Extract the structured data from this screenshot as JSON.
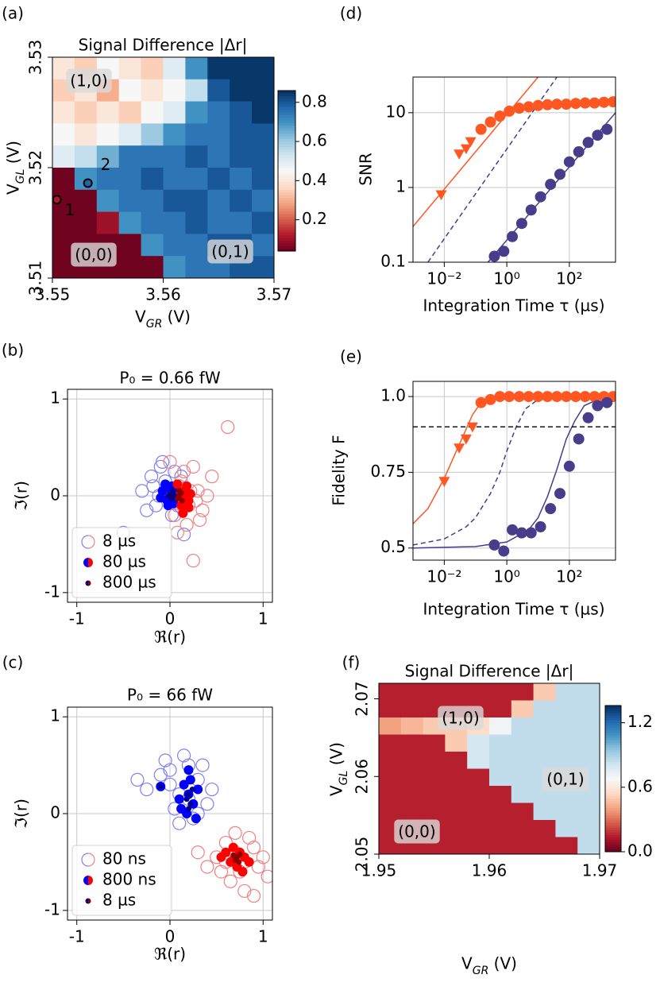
{
  "chart_data": [
    {
      "type": "heatmap",
      "panel_label": "(a)",
      "title": "Signal Difference |Δr|",
      "xlabel": "V_{GR} (V)",
      "ylabel": "V_{GL} (V)",
      "xlim": [
        3.55,
        3.57
      ],
      "ylim": [
        3.51,
        3.53
      ],
      "xticks": [
        3.55,
        3.56,
        3.57
      ],
      "yticks": [
        3.51,
        3.52,
        3.53
      ],
      "colormap": "RdBu",
      "clim": [
        0.04,
        0.86
      ],
      "cbar_ticks": [
        0.2,
        0.4,
        0.6,
        0.8
      ],
      "z": [
        [
          0.4,
          0.35,
          0.45,
          0.4,
          0.35,
          0.5,
          0.7,
          0.85,
          0.85,
          0.85
        ],
        [
          0.35,
          0.4,
          0.3,
          0.45,
          0.4,
          0.45,
          0.55,
          0.8,
          0.85,
          0.85
        ],
        [
          0.4,
          0.35,
          0.4,
          0.35,
          0.45,
          0.5,
          0.7,
          0.75,
          0.8,
          0.85
        ],
        [
          0.45,
          0.4,
          0.45,
          0.5,
          0.6,
          0.7,
          0.75,
          0.75,
          0.8,
          0.8
        ],
        [
          0.5,
          0.55,
          0.65,
          0.75,
          0.75,
          0.75,
          0.8,
          0.75,
          0.8,
          0.8
        ],
        [
          0.05,
          0.7,
          0.75,
          0.75,
          0.8,
          0.75,
          0.75,
          0.8,
          0.75,
          0.8
        ],
        [
          0.05,
          0.05,
          0.7,
          0.75,
          0.75,
          0.8,
          0.8,
          0.75,
          0.8,
          0.75
        ],
        [
          0.05,
          0.05,
          0.1,
          0.7,
          0.75,
          0.75,
          0.8,
          0.75,
          0.75,
          0.8
        ],
        [
          0.05,
          0.05,
          0.05,
          0.05,
          0.7,
          0.75,
          0.75,
          0.8,
          0.8,
          0.75
        ],
        [
          0.05,
          0.05,
          0.05,
          0.05,
          0.05,
          0.7,
          0.75,
          0.75,
          0.8,
          0.8
        ]
      ],
      "annotations": [
        "(1,0)",
        "(0,0)",
        "(0,1)"
      ],
      "points": [
        {
          "label": "1",
          "x": 3.5504,
          "y": 3.5171,
          "color": "#b2182b"
        },
        {
          "label": "2",
          "x": 3.5532,
          "y": 3.5186,
          "color": "#2166ac"
        }
      ]
    },
    {
      "type": "scatter",
      "panel_label": "(b)",
      "title": "P₀ = 0.66 fW",
      "xlabel": "ℜ(r)",
      "ylabel": "ℑ(r)",
      "xlim": [
        -1.1,
        1.1
      ],
      "ylim": [
        -1.1,
        1.1
      ],
      "xticks": [
        -1,
        0,
        1
      ],
      "yticks": [
        -1,
        0,
        1
      ],
      "grid": true,
      "legend": {
        "loc": "lower left",
        "labels": [
          "8 µs",
          "80 µs",
          "800 µs"
        ]
      },
      "series": [
        {
          "group": 0,
          "marker": "open-circle",
          "color": "#8080f0",
          "x": [
            -0.3,
            -0.2,
            -0.15,
            -0.1,
            -0.05,
            0,
            0.05,
            0.1,
            -0.25,
            -0.12,
            0.02,
            -0.08,
            0.08,
            -0.18,
            -0.02,
            0.12,
            -0.5,
            0.15
          ],
          "y": [
            0.05,
            0.2,
            -0.1,
            0.3,
            0.15,
            -0.05,
            0.25,
            0.1,
            -0.15,
            0.0,
            -0.2,
            0.35,
            -0.1,
            0.1,
            0.05,
            0.2,
            -0.38,
            -0.4
          ]
        },
        {
          "group": 0,
          "marker": "open-circle",
          "color": "#f08080",
          "x": [
            0.1,
            0.2,
            0.3,
            0.15,
            0.05,
            0.25,
            0.35,
            0.0,
            0.4,
            0.18,
            0.12,
            0.28,
            0.62,
            0.25,
            0.08,
            0.45,
            0.22,
            0.32
          ],
          "y": [
            0.1,
            -0.1,
            0.05,
            0.25,
            -0.2,
            0.3,
            -0.15,
            0.35,
            0.0,
            -0.3,
            0.15,
            -0.05,
            0.71,
            -0.67,
            -0.38,
            0.2,
            0.05,
            -0.25
          ]
        },
        {
          "group": 1,
          "marker": "mid",
          "color": "#0000ff",
          "x": [
            -0.08,
            -0.03,
            0.02,
            0.05,
            -0.1,
            0.0,
            0.04,
            -0.05,
            0.08,
            -0.02
          ],
          "y": [
            0.05,
            -0.05,
            0.1,
            0.0,
            -0.02,
            0.07,
            -0.08,
            0.12,
            0.05,
            -0.1
          ]
        },
        {
          "group": 1,
          "marker": "mid",
          "color": "#ff0000",
          "x": [
            0.1,
            0.15,
            0.2,
            0.12,
            0.18,
            0.08,
            0.22,
            0.14,
            0.16,
            0.2
          ],
          "y": [
            0.0,
            0.05,
            -0.05,
            -0.1,
            0.1,
            0.12,
            0.02,
            -0.18,
            -0.03,
            -0.12
          ]
        },
        {
          "group": 2,
          "marker": "dot",
          "color": "#00008b",
          "x": [
            0.0,
            0.03,
            0.05,
            -0.02,
            0.02
          ],
          "y": [
            0.02,
            0.05,
            0.0,
            0.0,
            -0.03
          ]
        },
        {
          "group": 2,
          "marker": "dot",
          "color": "#8b0000",
          "x": [
            0.1,
            0.12,
            0.08,
            0.13,
            0.1
          ],
          "y": [
            0.0,
            0.03,
            -0.03,
            -0.05,
            0.05
          ]
        }
      ]
    },
    {
      "type": "scatter",
      "panel_label": "(c)",
      "title": "P₀ = 66 fW",
      "xlabel": "ℜ(r)",
      "ylabel": "ℑ(r)",
      "xlim": [
        -1.1,
        1.1
      ],
      "ylim": [
        -1.1,
        1.1
      ],
      "xticks": [
        -1,
        0,
        1
      ],
      "yticks": [
        -1,
        0,
        1
      ],
      "grid": true,
      "legend": {
        "loc": "lower left",
        "labels": [
          "80 ns",
          "800 ns",
          "8 µs"
        ]
      },
      "series": [
        {
          "group": 0,
          "marker": "open-circle",
          "color": "#8080f0",
          "x": [
            0.2,
            0.0,
            -0.1,
            0.1,
            0.3,
            0.4,
            0.15,
            -0.25,
            -0.35,
            0.05,
            0.25,
            0.35,
            0.45,
            0.1,
            0.2,
            -0.05,
            0.3,
            0.0
          ],
          "y": [
            0.5,
            0.3,
            0.4,
            0.2,
            0.35,
            0.1,
            0.6,
            0.25,
            0.35,
            0.05,
            -0.05,
            0.5,
            0.25,
            -0.1,
            0.15,
            0.55,
            0.0,
            0.45
          ]
        },
        {
          "group": 0,
          "marker": "open-circle",
          "color": "#f08080",
          "x": [
            0.7,
            0.6,
            0.8,
            0.9,
            0.5,
            0.75,
            0.95,
            0.65,
            0.85,
            1.0,
            0.55,
            0.7,
            0.4,
            0.8,
            1.05,
            0.6,
            0.3,
            0.9
          ],
          "y": [
            -0.4,
            -0.3,
            -0.5,
            -0.35,
            -0.45,
            -0.6,
            -0.55,
            -0.7,
            -0.25,
            -0.45,
            -0.6,
            -0.2,
            -0.55,
            -0.8,
            -0.65,
            -0.5,
            -0.4,
            -0.85
          ]
        },
        {
          "group": 1,
          "marker": "mid",
          "color": "#0000ff",
          "x": [
            0.15,
            0.2,
            0.25,
            0.1,
            0.3,
            0.18,
            0.22,
            0.12,
            0.28,
            0.2,
            -0.1
          ],
          "y": [
            0.3,
            0.2,
            0.1,
            0.15,
            0.25,
            0.0,
            0.35,
            0.05,
            -0.05,
            0.45,
            0.28
          ]
        },
        {
          "group": 1,
          "marker": "mid",
          "color": "#ff0000",
          "x": [
            0.7,
            0.75,
            0.65,
            0.8,
            0.72,
            0.6,
            0.85,
            0.68,
            0.78,
            0.55
          ],
          "y": [
            -0.45,
            -0.4,
            -0.5,
            -0.45,
            -0.55,
            -0.4,
            -0.5,
            -0.35,
            -0.6,
            -0.45
          ]
        },
        {
          "group": 2,
          "marker": "dot",
          "color": "#00008b",
          "x": [
            0.2,
            0.22,
            0.18,
            0.24,
            0.2,
            -0.1
          ],
          "y": [
            0.2,
            0.1,
            0.15,
            0.25,
            0.05,
            0.28
          ]
        },
        {
          "group": 2,
          "marker": "dot",
          "color": "#8b0000",
          "x": [
            0.72,
            0.75,
            0.7,
            0.74,
            0.68
          ],
          "y": [
            -0.45,
            -0.42,
            -0.48,
            -0.5,
            -0.43
          ]
        }
      ]
    },
    {
      "type": "scatter",
      "panel_label": "(d)",
      "xlabel": "Integration Time τ (µs)",
      "ylabel": "SNR",
      "xscale": "log",
      "yscale": "log",
      "xlim": [
        0.001,
        3000
      ],
      "ylim": [
        0.1,
        30
      ],
      "grid": true,
      "xticks": [
        {
          "value": 0.01,
          "label": "10⁻²"
        },
        {
          "value": 1,
          "label": "10⁰"
        },
        {
          "value": 100,
          "label": "10²"
        }
      ],
      "yticks": [
        0.1,
        1,
        10
      ],
      "lines": [
        {
          "color": "#ff5722",
          "style": "solid",
          "x": [
            0.001,
            10
          ],
          "y": [
            0.3,
            30
          ]
        },
        {
          "color": "#483d8b",
          "style": "dashed",
          "x": [
            0.003,
            40
          ],
          "y": [
            0.1,
            30
          ]
        },
        {
          "color": "#483d8b",
          "style": "solid",
          "x": [
            0.25,
            3000
          ],
          "y": [
            0.1,
            10
          ]
        }
      ],
      "series": [
        {
          "marker": "triangle",
          "color": "#ff5722",
          "x": [
            0.008,
            0.03,
            0.05,
            0.07
          ],
          "y": [
            0.8,
            2.8,
            3.3,
            4.1
          ]
        },
        {
          "marker": "circle",
          "color": "#ff5722",
          "x": [
            0.15,
            0.3,
            0.6,
            1.2,
            2.5,
            5,
            10,
            20,
            40,
            80,
            160,
            320,
            640,
            1280,
            2500
          ],
          "y": [
            6,
            7.5,
            9,
            10.5,
            11.5,
            12,
            12.5,
            12.8,
            13,
            13,
            13.3,
            13.5,
            13.5,
            13.8,
            14
          ]
        },
        {
          "marker": "circle",
          "color": "#483d8b",
          "x": [
            0.4,
            0.8,
            1.5,
            3,
            6,
            12,
            25,
            50,
            100,
            200,
            400,
            800,
            1600
          ],
          "y": [
            0.12,
            0.14,
            0.22,
            0.33,
            0.5,
            0.75,
            1.1,
            1.5,
            2.2,
            3,
            4,
            5,
            6
          ]
        }
      ]
    },
    {
      "type": "scatter",
      "panel_label": "(e)",
      "xlabel": "Integration Time τ (µs)",
      "ylabel": "Fidelity F",
      "xscale": "log",
      "xlim": [
        0.001,
        3000
      ],
      "ylim": [
        0.46,
        1.05
      ],
      "grid": true,
      "xticks": [
        {
          "value": 0.01,
          "label": "10⁻²"
        },
        {
          "value": 1,
          "label": "10⁰"
        },
        {
          "value": 100,
          "label": "10²"
        }
      ],
      "yticks": [
        0.5,
        0.75,
        {
          "value": 1,
          "label": "1.0"
        }
      ],
      "hlines": [
        {
          "y": 0.9,
          "color": "#000000",
          "style": "dashed"
        }
      ],
      "lines": [
        {
          "color": "#ff5722",
          "style": "solid",
          "x": [
            0.001,
            0.003,
            0.01,
            0.02,
            0.04,
            0.08,
            0.15,
            0.3,
            1,
            3000
          ],
          "y": [
            0.58,
            0.63,
            0.73,
            0.8,
            0.87,
            0.94,
            0.98,
            1.0,
            1.0,
            1.0
          ]
        },
        {
          "color": "#483d8b",
          "style": "dashed",
          "x": [
            0.001,
            0.01,
            0.05,
            0.1,
            0.3,
            0.6,
            1,
            2,
            4,
            10,
            3000
          ],
          "y": [
            0.51,
            0.53,
            0.57,
            0.6,
            0.68,
            0.75,
            0.82,
            0.9,
            0.96,
            0.99,
            1.0
          ]
        },
        {
          "color": "#483d8b",
          "style": "solid",
          "x": [
            0.001,
            0.1,
            1,
            5,
            10,
            20,
            40,
            80,
            150,
            300,
            800,
            3000
          ],
          "y": [
            0.5,
            0.505,
            0.52,
            0.56,
            0.6,
            0.67,
            0.76,
            0.86,
            0.92,
            0.97,
            0.99,
            1.0
          ]
        }
      ],
      "series": [
        {
          "marker": "triangle",
          "color": "#ff5722",
          "x": [
            0.01,
            0.03,
            0.05,
            0.08
          ],
          "y": [
            0.72,
            0.83,
            0.86,
            0.9
          ]
        },
        {
          "marker": "circle",
          "color": "#ff5722",
          "x": [
            0.15,
            0.3,
            0.6,
            1.2,
            2.5,
            5,
            10,
            20,
            40,
            80,
            160,
            320,
            640,
            1280,
            2500
          ],
          "y": [
            0.98,
            0.99,
            1,
            1,
            1,
            1,
            1,
            1,
            1,
            1,
            1,
            1,
            1,
            1,
            1
          ]
        },
        {
          "marker": "circle",
          "color": "#483d8b",
          "x": [
            0.4,
            0.8,
            1.5,
            3,
            6,
            12,
            25,
            50,
            100,
            200,
            400,
            800,
            1600
          ],
          "y": [
            0.51,
            0.49,
            0.56,
            0.55,
            0.55,
            0.57,
            0.63,
            0.68,
            0.77,
            0.86,
            0.93,
            0.97,
            0.98
          ]
        }
      ]
    },
    {
      "type": "heatmap",
      "panel_label": "(f)",
      "title": "Signal Difference |Δr|",
      "xlabel": "V_{GR} (V)",
      "ylabel": "V_{GL} (V)",
      "xlim": [
        1.95,
        1.97
      ],
      "ylim": [
        2.05,
        2.072
      ],
      "xticks": [
        1.95,
        1.96,
        1.97
      ],
      "yticks": [
        2.05,
        2.06,
        2.07
      ],
      "colormap": "RdBu",
      "clim": [
        0,
        1.36
      ],
      "cbar_ticks": [
        {
          "value": 0,
          "label": "0.0"
        },
        0.6,
        1.2
      ],
      "z": [
        [
          0.15,
          0.15,
          0.15,
          0.15,
          0.15,
          0.15,
          0.15,
          0.5,
          0.85,
          0.85
        ],
        [
          0.15,
          0.15,
          0.15,
          0.15,
          0.15,
          0.15,
          0.5,
          0.85,
          0.85,
          0.85
        ],
        [
          0.4,
          0.45,
          0.5,
          0.5,
          0.55,
          0.7,
          0.85,
          0.85,
          0.85,
          0.85
        ],
        [
          0.15,
          0.15,
          0.15,
          0.5,
          0.8,
          0.85,
          0.85,
          0.85,
          0.85,
          0.85
        ],
        [
          0.15,
          0.15,
          0.15,
          0.15,
          0.8,
          0.85,
          0.85,
          0.85,
          0.85,
          0.85
        ],
        [
          0.15,
          0.15,
          0.15,
          0.15,
          0.15,
          0.85,
          0.85,
          0.85,
          0.85,
          0.85
        ],
        [
          0.15,
          0.15,
          0.15,
          0.15,
          0.15,
          0.15,
          0.85,
          0.85,
          0.85,
          0.85
        ],
        [
          0.15,
          0.15,
          0.15,
          0.15,
          0.15,
          0.15,
          0.15,
          0.85,
          0.85,
          0.85
        ],
        [
          0.15,
          0.15,
          0.15,
          0.15,
          0.15,
          0.15,
          0.15,
          0.15,
          0.85,
          0.85
        ],
        [
          0.15,
          0.15,
          0.15,
          0.15,
          0.15,
          0.15,
          0.15,
          0.15,
          0.15,
          0.85
        ]
      ],
      "annotations": [
        "(1,0)",
        "(0,1)",
        "(0,0)"
      ]
    }
  ]
}
